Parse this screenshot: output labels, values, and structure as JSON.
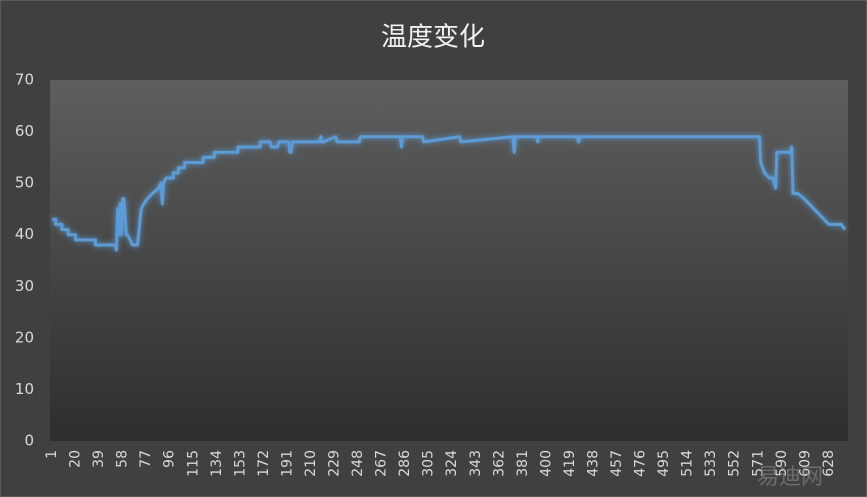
{
  "chart_data": {
    "type": "line",
    "title": "温度变化",
    "x": [
      1,
      4,
      4,
      9,
      9,
      14,
      14,
      20,
      20,
      36,
      36,
      52,
      53,
      54,
      55,
      56,
      57,
      58,
      59,
      61,
      62,
      64,
      66,
      70,
      73,
      75,
      78,
      82,
      87,
      89,
      90,
      91,
      93,
      99,
      99,
      103,
      103,
      108,
      108,
      123,
      123,
      132,
      132,
      151,
      151,
      169,
      169,
      177,
      178,
      183,
      184,
      192,
      193,
      194,
      195,
      217,
      218,
      219,
      220,
      230,
      231,
      249,
      250,
      282,
      283,
      284,
      300,
      301,
      330,
      331,
      373,
      374,
      375,
      392,
      393,
      394,
      425,
      426,
      427,
      572,
      573,
      576,
      580,
      583,
      585,
      586,
      597,
      598,
      599,
      603,
      608,
      612,
      616,
      620,
      624,
      628,
      632,
      638,
      641
    ],
    "series": [
      {
        "color": "#5b9bd5",
        "values": [
          43,
          43,
          42,
          42,
          41,
          41,
          40,
          40,
          39,
          39,
          38,
          38,
          37,
          45,
          40,
          46,
          40,
          47,
          47,
          40,
          40,
          39,
          38,
          38,
          45,
          46,
          47,
          48,
          49,
          50,
          46,
          50,
          51,
          51,
          52,
          52,
          53,
          53,
          54,
          54,
          55,
          55,
          56,
          56,
          57,
          57,
          58,
          58,
          57,
          57,
          58,
          58,
          56,
          56,
          58,
          58,
          59,
          58,
          58,
          59,
          58,
          58,
          59,
          59,
          57,
          59,
          59,
          58,
          59,
          58,
          59,
          56,
          59,
          59,
          58,
          59,
          59,
          58,
          59,
          59,
          54,
          52,
          51,
          51,
          49,
          56,
          56,
          57,
          48,
          48,
          47,
          46,
          45,
          44,
          43,
          42,
          42,
          42,
          41
        ]
      }
    ],
    "xlim": [
      1,
      641
    ],
    "xticks": [
      1,
      20,
      39,
      58,
      77,
      96,
      115,
      134,
      153,
      172,
      191,
      210,
      229,
      248,
      267,
      286,
      305,
      324,
      343,
      362,
      381,
      400,
      419,
      438,
      457,
      476,
      495,
      514,
      533,
      552,
      571,
      590,
      609,
      628
    ],
    "ylim": [
      0,
      70
    ],
    "yticks": [
      0,
      10,
      20,
      30,
      40,
      50,
      60,
      70
    ],
    "grid": false,
    "watermark": "易迪网"
  }
}
